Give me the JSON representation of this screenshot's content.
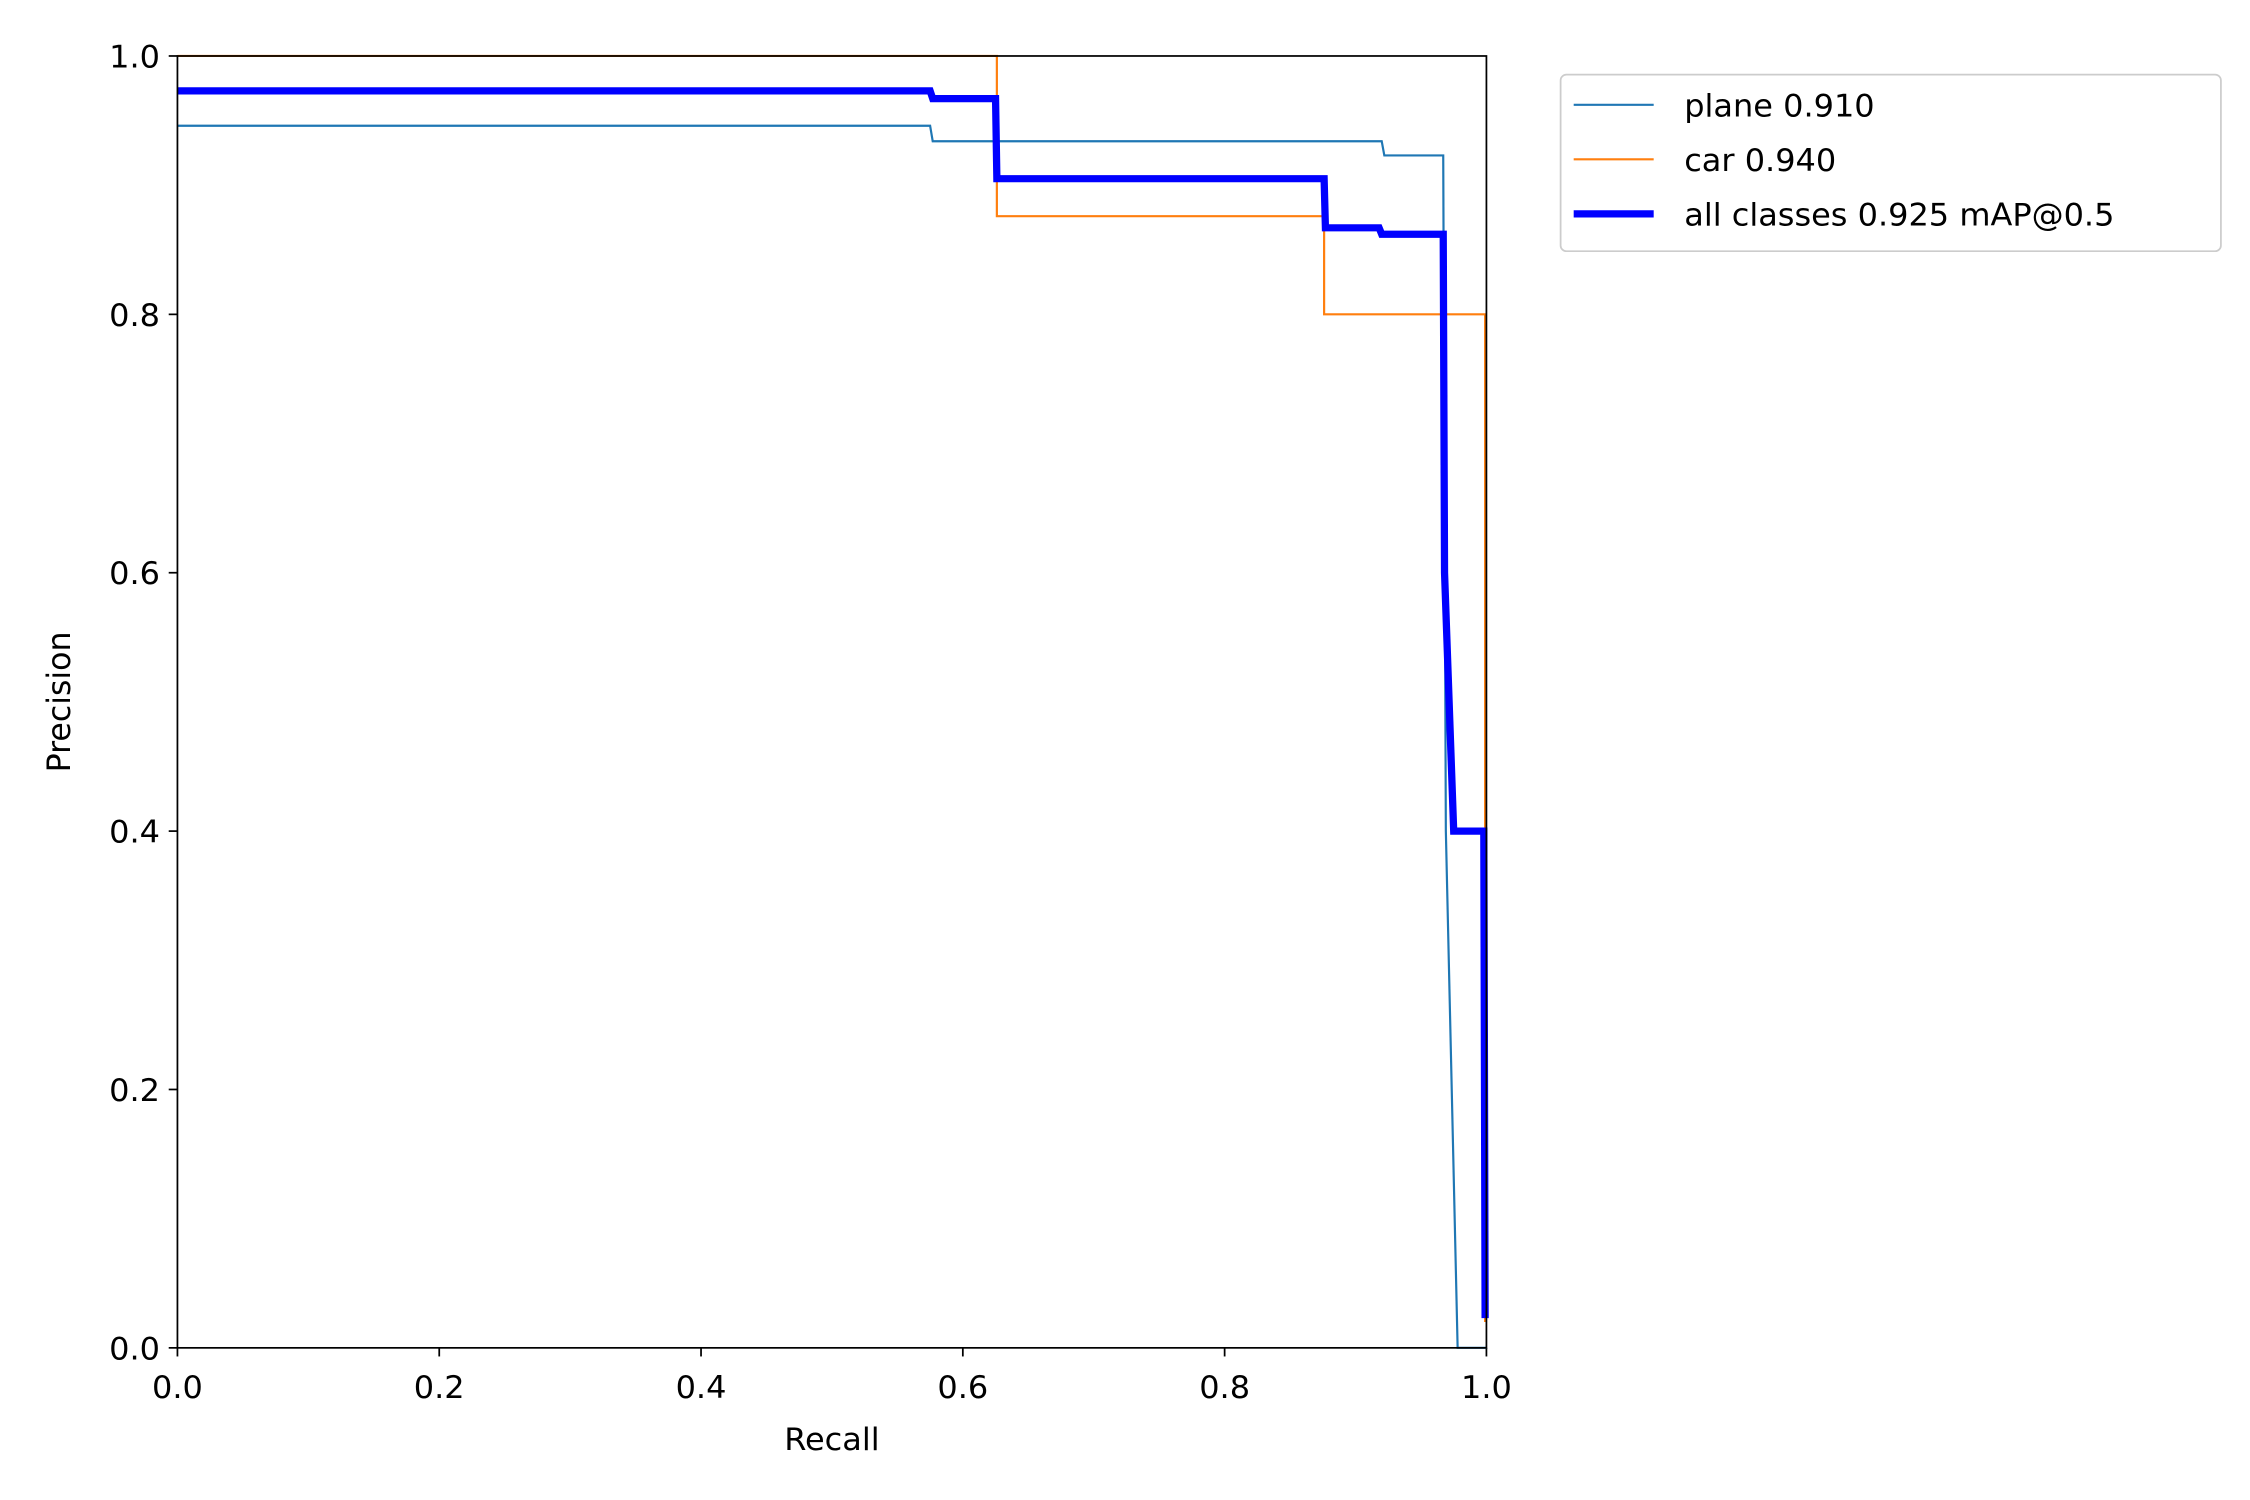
{
  "chart_data": {
    "type": "line",
    "x_label": "Recall",
    "y_label": "Precision",
    "xlim": [
      0,
      1
    ],
    "ylim": [
      0,
      1
    ],
    "xticks": [
      {
        "value": 0,
        "label": "0.0"
      },
      0.2,
      0.4,
      0.6,
      0.8,
      {
        "value": 1,
        "label": "1.0"
      }
    ],
    "yticks": [
      {
        "value": 0,
        "label": "0.0"
      },
      0.2,
      0.4,
      0.6,
      0.8,
      {
        "value": 1,
        "label": "1.0"
      }
    ],
    "legend": "outside upper right",
    "series": [
      {
        "name": "plane 0.910",
        "color": "#1f77b4",
        "linewidth": 1.5,
        "x": [
          0,
          0.575,
          0.577,
          0.92,
          0.922,
          0.967,
          0.969,
          0.978,
          1.0
        ],
        "values": [
          0.946,
          0.946,
          0.934,
          0.934,
          0.923,
          0.923,
          0.4,
          0.0,
          0.0
        ]
      },
      {
        "name": "car 0.940",
        "color": "#ff7f0e",
        "linewidth": 1.5,
        "x": [
          0,
          0.626,
          0.626,
          0.876,
          0.876,
          0.999,
          0.999
        ],
        "values": [
          1.0,
          1.0,
          0.876,
          0.876,
          0.8,
          0.8,
          0.02
        ]
      },
      {
        "name": "all classes 0.925 mAP@0.5",
        "color": "#0000ff",
        "linewidth": 5,
        "x": [
          0,
          0.575,
          0.577,
          0.625,
          0.626,
          0.876,
          0.877,
          0.918,
          0.92,
          0.967,
          0.968,
          0.975,
          0.998,
          0.999
        ],
        "values": [
          0.973,
          0.973,
          0.967,
          0.967,
          0.905,
          0.905,
          0.867,
          0.867,
          0.862,
          0.862,
          0.6,
          0.4,
          0.4,
          0.023
        ]
      }
    ]
  }
}
